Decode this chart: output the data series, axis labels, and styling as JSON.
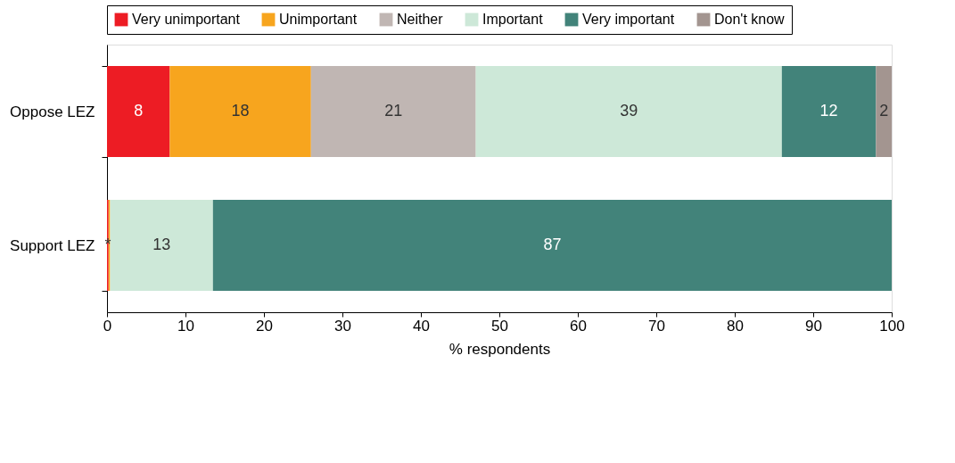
{
  "chart_data": {
    "type": "bar",
    "orientation": "horizontal",
    "stacked": true,
    "categories": [
      "Oppose LEZ",
      "Support LEZ"
    ],
    "xlabel": "% respondents",
    "xlim": [
      0,
      100
    ],
    "xticks": [
      0,
      10,
      20,
      30,
      40,
      50,
      60,
      70,
      80,
      90,
      100
    ],
    "grid": false,
    "legend": "top",
    "series": [
      {
        "name": "Very unimportant",
        "color": "#ed1c24",
        "values": [
          8,
          0.2
        ],
        "value_labels": [
          "8",
          "*"
        ]
      },
      {
        "name": "Unimportant",
        "color": "#f7a51e",
        "values": [
          18,
          0.2
        ],
        "value_labels": [
          "18",
          null
        ]
      },
      {
        "name": "Neither",
        "color": "#c0b6b3",
        "values": [
          21,
          null
        ],
        "value_labels": [
          "21",
          null
        ]
      },
      {
        "name": "Important",
        "color": "#cde8d8",
        "values": [
          39,
          13.1
        ],
        "value_labels": [
          "39",
          "13"
        ]
      },
      {
        "name": "Very important",
        "color": "#42837a",
        "values": [
          12,
          86.5
        ],
        "value_labels": [
          "12",
          "87"
        ]
      },
      {
        "name": "Don't know",
        "color": "#a39590",
        "values": [
          2,
          null
        ],
        "value_labels": [
          "2",
          null
        ]
      }
    ]
  }
}
